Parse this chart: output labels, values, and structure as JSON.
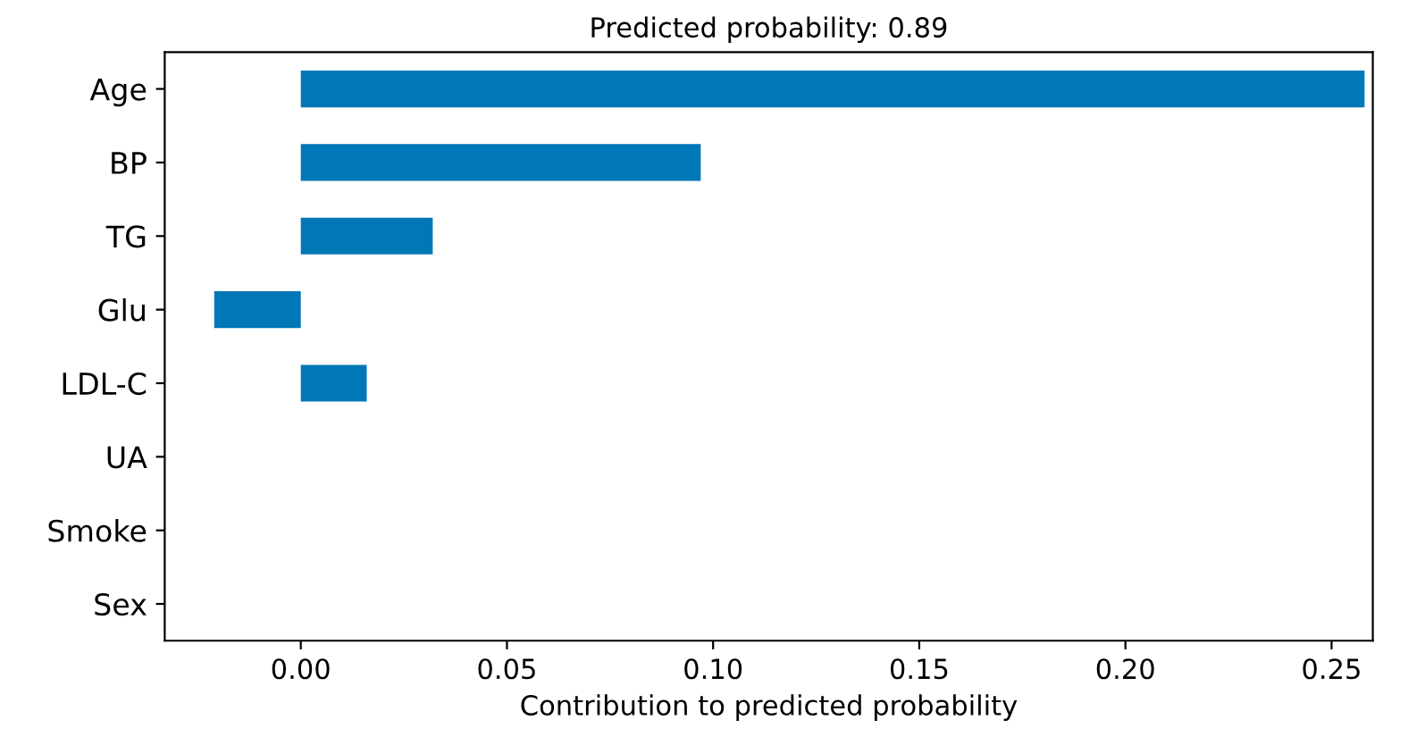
{
  "chart_data": {
    "type": "bar",
    "orientation": "horizontal",
    "title": "Predicted probability: 0.89",
    "xlabel": "Contribution to predicted probability",
    "categories": [
      "Age",
      "BP",
      "TG",
      "Glu",
      "LDL-C",
      "UA",
      "Smoke",
      "Sex"
    ],
    "values": [
      0.258,
      0.097,
      0.032,
      -0.021,
      0.016,
      0,
      0,
      0
    ],
    "color": "#0077b6",
    "xlim": [
      -0.033,
      0.26
    ],
    "xticks": [
      {
        "value": 0,
        "label": "0.00"
      },
      {
        "value": 0.05,
        "label": "0.05"
      },
      {
        "value": 0.1,
        "label": "0.10"
      },
      {
        "value": 0.15,
        "label": "0.15"
      },
      {
        "value": 0.2,
        "label": "0.20"
      },
      {
        "value": 0.25,
        "label": "0.25"
      }
    ],
    "grid": false,
    "legend": false
  }
}
